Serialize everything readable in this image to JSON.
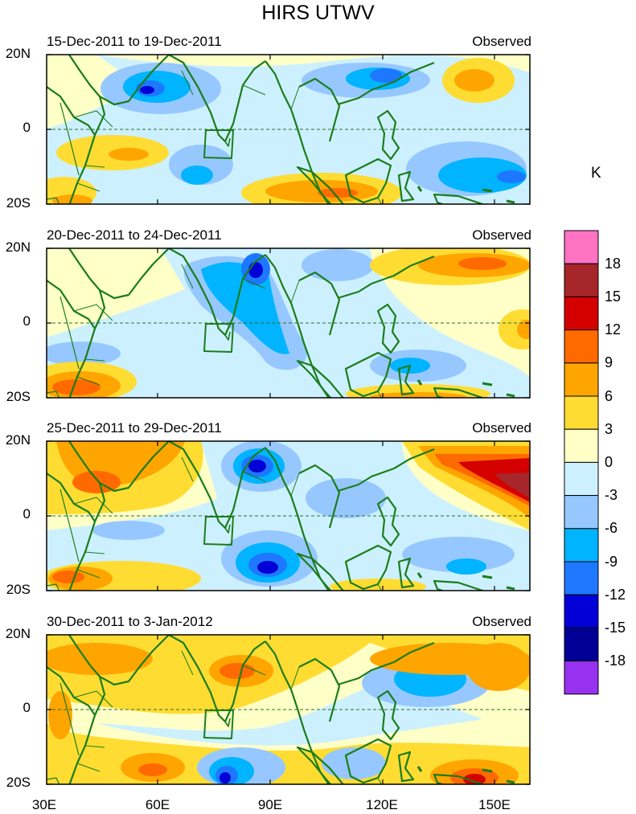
{
  "title": "HIRS UTWV",
  "panels": [
    {
      "date_range": "15-Dec-2011 to 19-Dec-2011",
      "source": "Observed"
    },
    {
      "date_range": "20-Dec-2011 to 24-Dec-2011",
      "source": "Observed"
    },
    {
      "date_range": "25-Dec-2011 to 29-Dec-2011",
      "source": "Observed"
    },
    {
      "date_range": "30-Dec-2011 to 3-Jan-2012",
      "source": "Observed"
    }
  ],
  "lat_labels": {
    "north": "20N",
    "equator": "0",
    "south": "20S"
  },
  "lon_labels": [
    "30E",
    "60E",
    "90E",
    "120E",
    "150E"
  ],
  "colorbar": {
    "unit": "K",
    "levels": [
      "18",
      "15",
      "12",
      "9",
      "6",
      "3",
      "0",
      "-3",
      "-6",
      "-9",
      "-12",
      "-15",
      "-18"
    ],
    "colors": [
      "#ff73c3",
      "#a6262a",
      "#d40000",
      "#ff6a00",
      "#ffa500",
      "#ffdc32",
      "#ffffc8",
      "#cdf0ff",
      "#96c8ff",
      "#00b4ff",
      "#1e78ff",
      "#0000d7",
      "#000096",
      "#9632f0"
    ]
  }
}
